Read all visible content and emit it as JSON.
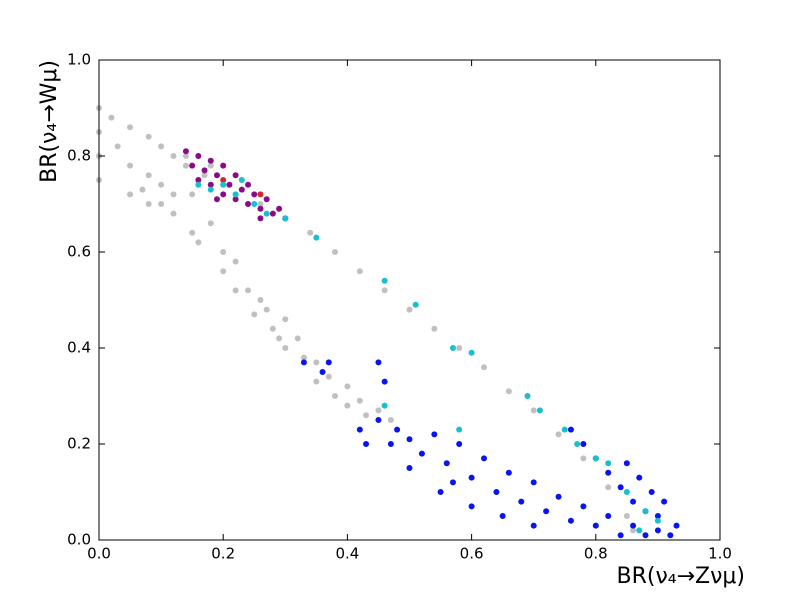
{
  "chart_data": {
    "type": "scatter",
    "xlabel": "BR(ν₄→Zνμ)",
    "ylabel": "BR(ν₄→Wμ)",
    "xlim": [
      0,
      1
    ],
    "ylim": [
      0,
      1
    ],
    "xticks": [
      {
        "value": 0,
        "label": "0.0"
      },
      {
        "value": 0.2,
        "label": "0.2"
      },
      {
        "value": 0.4,
        "label": "0.4"
      },
      {
        "value": 0.6,
        "label": "0.6"
      },
      {
        "value": 0.8,
        "label": "0.8"
      },
      {
        "value": 1,
        "label": "1.0"
      }
    ],
    "yticks": [
      {
        "value": 0,
        "label": "0.0"
      },
      {
        "value": 0.2,
        "label": "0.2"
      },
      {
        "value": 0.4,
        "label": "0.4"
      },
      {
        "value": 0.6,
        "label": "0.6"
      },
      {
        "value": 0.8,
        "label": "0.8"
      },
      {
        "value": 1,
        "label": "1.0"
      }
    ],
    "grid": false,
    "series": [
      {
        "color": "#c0c0c0",
        "x": [
          0,
          0,
          0,
          0,
          0.02,
          0.03,
          0.05,
          0.05,
          0.05,
          0.08,
          0.08,
          0.08,
          0.1,
          0.1,
          0.12,
          0.12,
          0.14,
          0.15,
          0.15,
          0.17,
          0.18,
          0.2,
          0.2,
          0.22,
          0.22,
          0.24,
          0.25,
          0.27,
          0.28,
          0.3,
          0.3,
          0.32,
          0.33,
          0.35,
          0.35,
          0.37,
          0.38,
          0.4,
          0.4,
          0.42,
          0.43,
          0.45,
          0.47,
          0.12,
          0.1,
          0.07,
          0.16,
          0.26,
          0.29,
          0.3,
          0.34,
          0.38,
          0.42,
          0.46,
          0.5,
          0.54,
          0.58,
          0.62,
          0.66,
          0.7,
          0.74,
          0.78,
          0.82,
          0.85,
          0.86,
          0.22,
          0.26,
          0.18,
          0.14
        ],
        "values": [
          0.9,
          0.85,
          0.8,
          0.75,
          0.88,
          0.82,
          0.86,
          0.78,
          0.72,
          0.84,
          0.76,
          0.7,
          0.82,
          0.74,
          0.8,
          0.68,
          0.78,
          0.72,
          0.64,
          0.76,
          0.66,
          0.6,
          0.56,
          0.58,
          0.52,
          0.52,
          0.47,
          0.48,
          0.44,
          0.46,
          0.4,
          0.42,
          0.38,
          0.37,
          0.33,
          0.34,
          0.3,
          0.32,
          0.28,
          0.29,
          0.26,
          0.27,
          0.25,
          0.72,
          0.7,
          0.73,
          0.62,
          0.5,
          0.42,
          0.67,
          0.64,
          0.6,
          0.56,
          0.52,
          0.48,
          0.44,
          0.4,
          0.36,
          0.31,
          0.27,
          0.22,
          0.17,
          0.11,
          0.05,
          0.02,
          0.72,
          0.7,
          0.78,
          0.8
        ]
      },
      {
        "color": "#8b0a8b",
        "x": [
          0.14,
          0.15,
          0.16,
          0.17,
          0.18,
          0.18,
          0.19,
          0.2,
          0.2,
          0.21,
          0.22,
          0.22,
          0.23,
          0.24,
          0.25,
          0.26,
          0.27,
          0.28,
          0.29,
          0.3,
          0.16,
          0.19,
          0.24,
          0.26
        ],
        "values": [
          0.81,
          0.78,
          0.8,
          0.77,
          0.79,
          0.74,
          0.76,
          0.72,
          0.78,
          0.74,
          0.71,
          0.76,
          0.73,
          0.7,
          0.72,
          0.69,
          0.71,
          0.68,
          0.69,
          0.67,
          0.75,
          0.71,
          0.74,
          0.67
        ]
      },
      {
        "color": "#d62728",
        "x": [
          0.26,
          0.2
        ],
        "values": [
          0.72,
          0.75
        ]
      },
      {
        "color": "#0a14f0",
        "x": [
          0.36,
          0.37,
          0.45,
          0.33,
          0.46,
          0.45,
          0.42,
          0.48,
          0.5,
          0.52,
          0.54,
          0.56,
          0.58,
          0.6,
          0.62,
          0.64,
          0.66,
          0.68,
          0.7,
          0.72,
          0.74,
          0.76,
          0.78,
          0.8,
          0.82,
          0.84,
          0.86,
          0.88,
          0.9,
          0.92,
          0.93,
          0.76,
          0.78,
          0.8,
          0.82,
          0.84,
          0.86,
          0.88,
          0.9,
          0.91,
          0.89,
          0.87,
          0.85,
          0.55,
          0.6,
          0.5,
          0.47,
          0.43,
          0.57,
          0.65,
          0.7
        ],
        "values": [
          0.35,
          0.37,
          0.37,
          0.37,
          0.33,
          0.25,
          0.23,
          0.23,
          0.21,
          0.18,
          0.22,
          0.16,
          0.2,
          0.13,
          0.17,
          0.1,
          0.14,
          0.08,
          0.12,
          0.06,
          0.09,
          0.04,
          0.07,
          0.03,
          0.05,
          0.01,
          0.03,
          0.01,
          0.02,
          0.01,
          0.03,
          0.23,
          0.2,
          0.17,
          0.14,
          0.11,
          0.08,
          0.06,
          0.05,
          0.08,
          0.1,
          0.13,
          0.16,
          0.1,
          0.07,
          0.15,
          0.2,
          0.2,
          0.12,
          0.05,
          0.03
        ]
      },
      {
        "color": "#17bfcf",
        "x": [
          0.16,
          0.18,
          0.2,
          0.22,
          0.23,
          0.25,
          0.27,
          0.3,
          0.35,
          0.46,
          0.51,
          0.57,
          0.6,
          0.69,
          0.71,
          0.75,
          0.77,
          0.8,
          0.82,
          0.85,
          0.88,
          0.9,
          0.87,
          0.46,
          0.58
        ],
        "values": [
          0.74,
          0.73,
          0.74,
          0.72,
          0.75,
          0.7,
          0.68,
          0.67,
          0.63,
          0.54,
          0.49,
          0.4,
          0.39,
          0.3,
          0.27,
          0.23,
          0.2,
          0.17,
          0.16,
          0.1,
          0.06,
          0.04,
          0.02,
          0.28,
          0.23
        ]
      }
    ]
  }
}
